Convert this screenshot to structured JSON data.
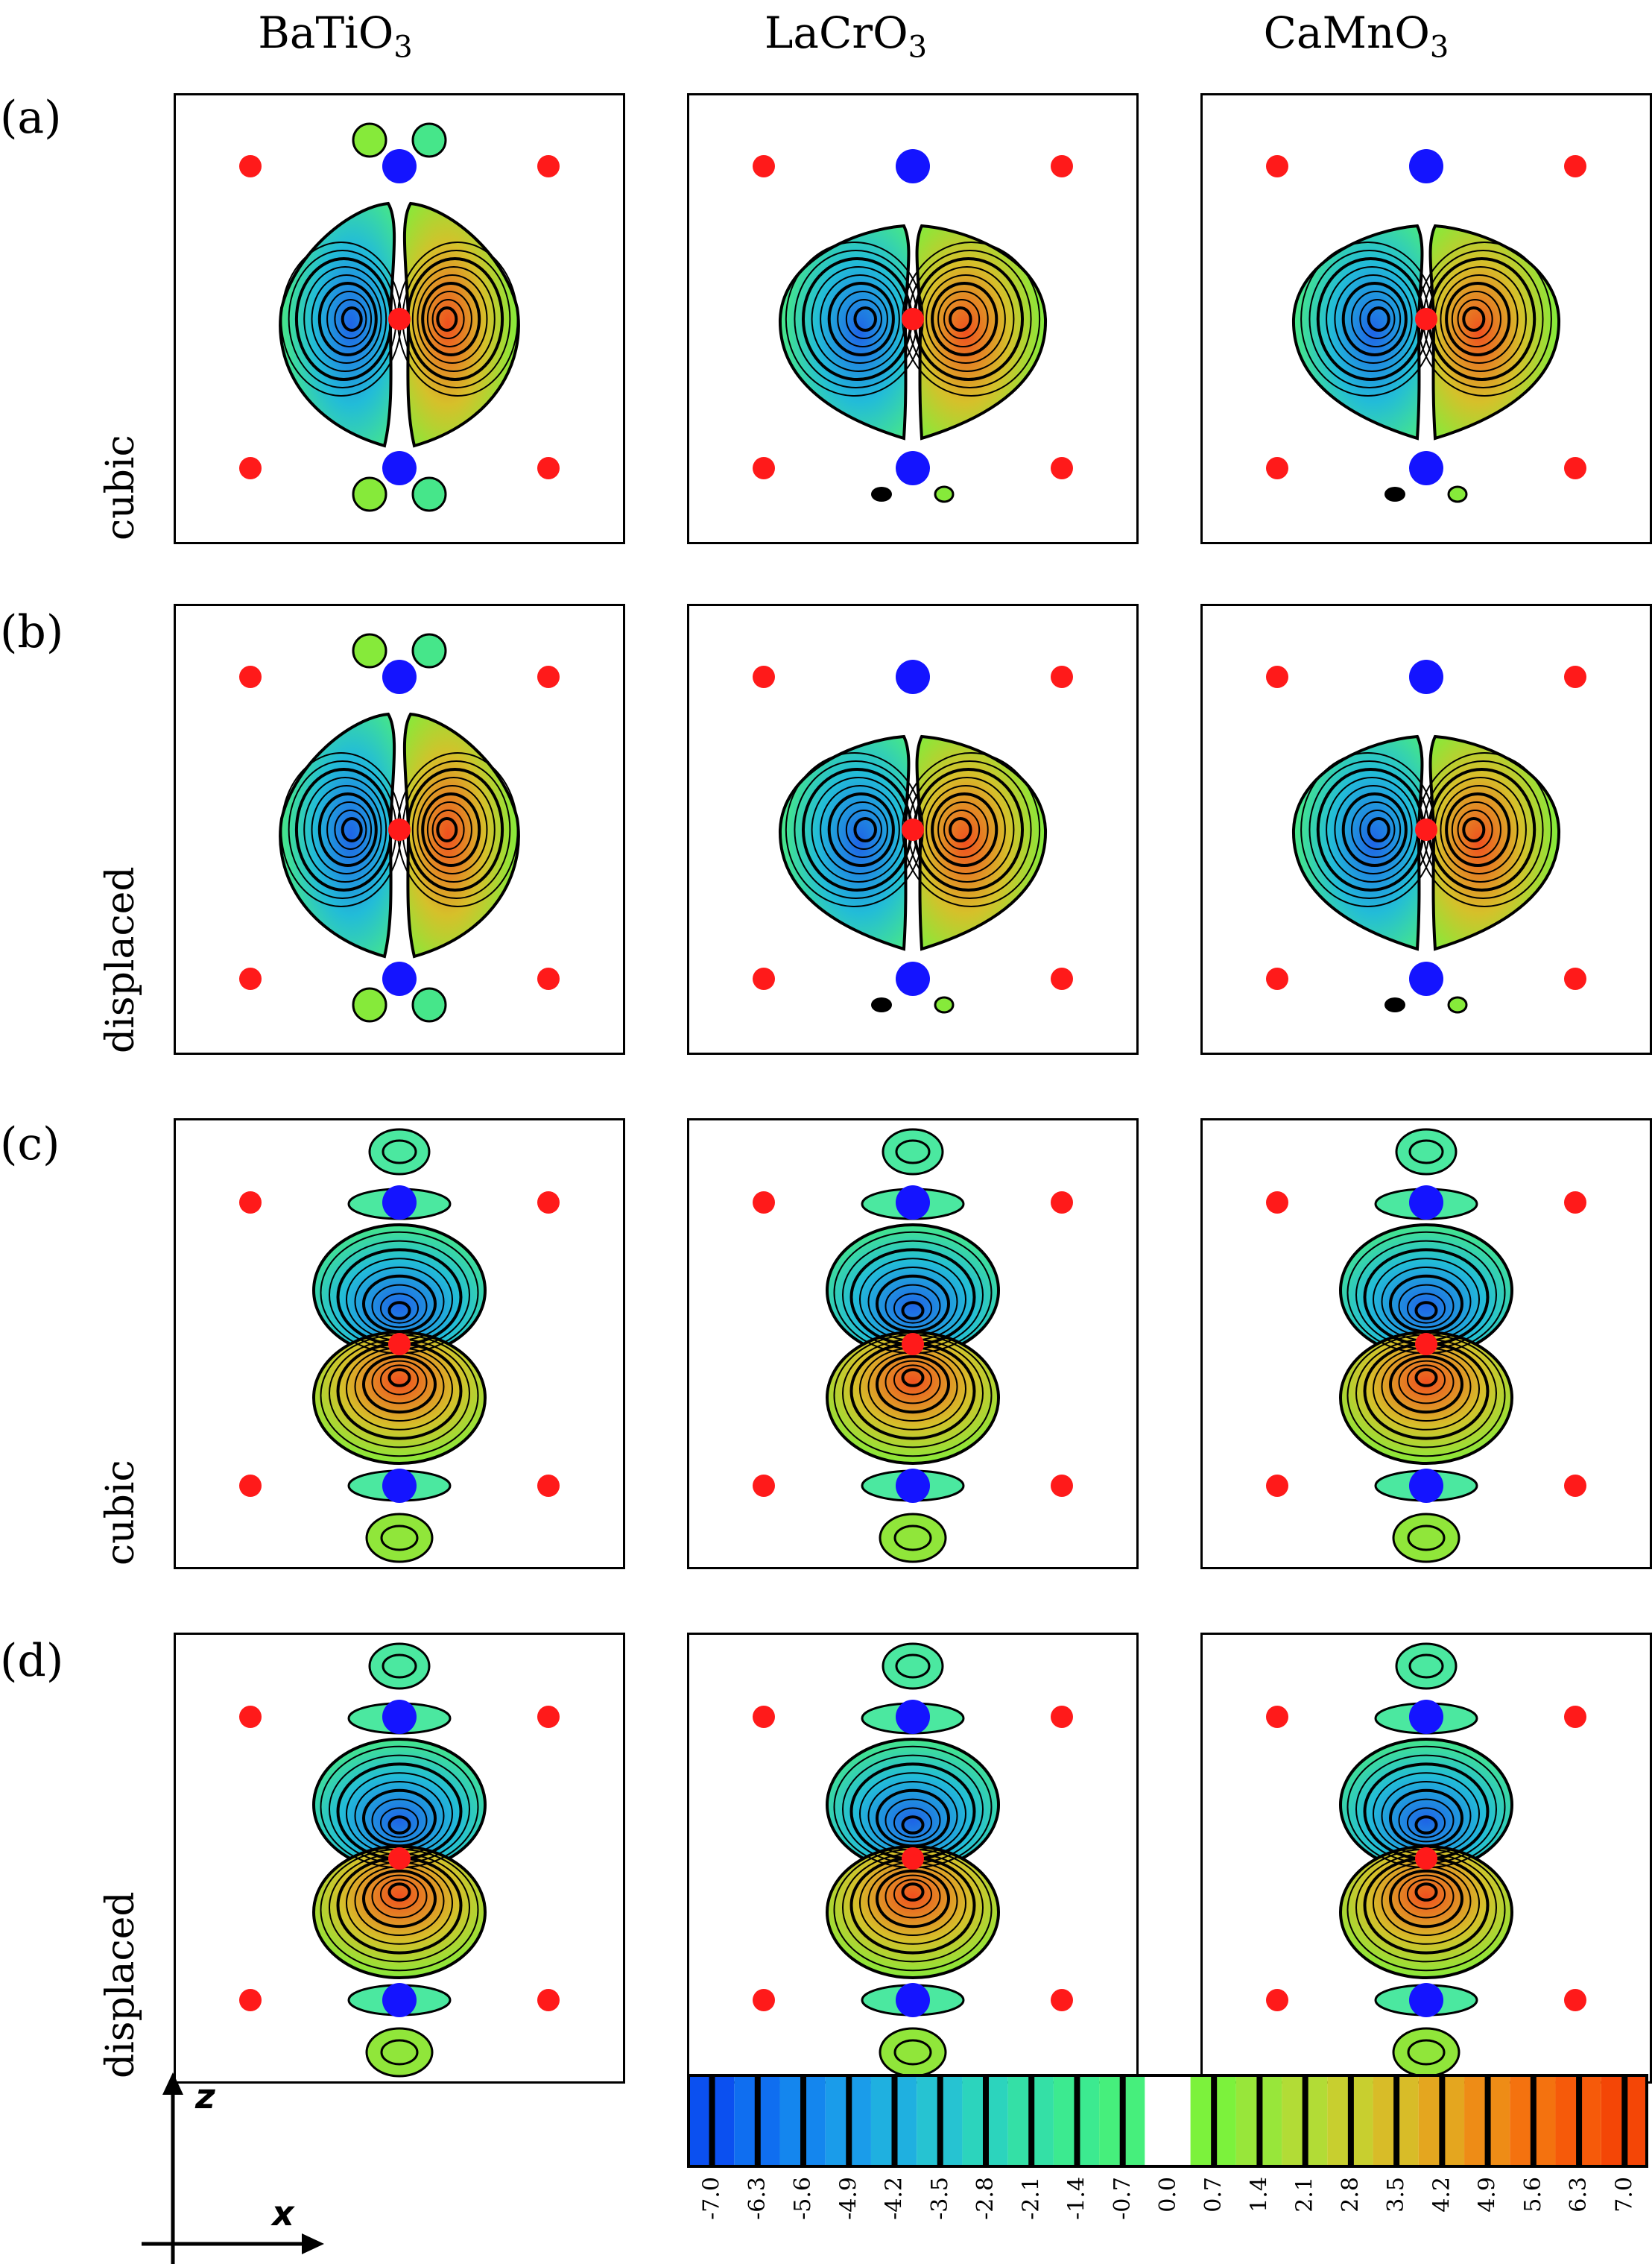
{
  "figure": {
    "columns": [
      {
        "base": "BaTiO",
        "sub": "3"
      },
      {
        "base": "LaCrO",
        "sub": "3"
      },
      {
        "base": "CaMnO",
        "sub": "3"
      }
    ],
    "rows": [
      {
        "label": "(a)",
        "side": "cubic",
        "orbital": "px"
      },
      {
        "label": "(b)",
        "side": "displaced",
        "orbital": "px"
      },
      {
        "label": "(c)",
        "side": "cubic",
        "orbital": "pz"
      },
      {
        "label": "(d)",
        "side": "displaced",
        "orbital": "pz"
      }
    ],
    "axes": {
      "vertical": "z",
      "horizontal": "x"
    },
    "colorbar": {
      "ticks": [
        "-7.0",
        "-6.3",
        "-5.6",
        "-4.9",
        "-4.2",
        "-3.5",
        "-2.8",
        "-2.1",
        "-1.4",
        "-0.7",
        "0.0",
        "0.7",
        "1.4",
        "2.1",
        "2.8",
        "3.5",
        "4.2",
        "4.9",
        "5.6",
        "6.3",
        "7.0"
      ],
      "colors": [
        "#0b50f0",
        "#0f6ef0",
        "#1486ee",
        "#1a9cea",
        "#1fb0e0",
        "#26c3d2",
        "#2cd4bd",
        "#34e0a6",
        "#3cea90",
        "#46ef7c",
        "#ffffff",
        "#7cf23c",
        "#98e63a",
        "#b2dc36",
        "#c8cf2f",
        "#d8bc28",
        "#e4a61f",
        "#ee8c16",
        "#f4720f",
        "#f65a0a",
        "#f44606"
      ]
    },
    "colors": {
      "oxygen": "#ff1a1a",
      "cation": "#1414ff",
      "contour": "#000000",
      "negative_core": "#1e64e6",
      "positive_core": "#f0501e",
      "lobe_edge_neg": "#46e68a",
      "lobe_edge_pos": "#86ea3a"
    }
  }
}
